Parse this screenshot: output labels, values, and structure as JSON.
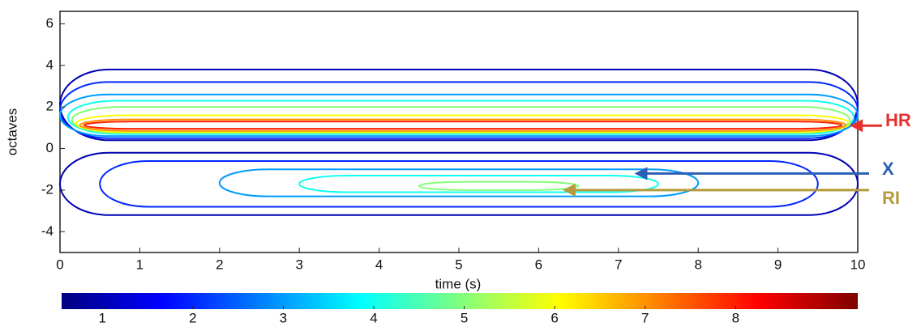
{
  "chart_data": {
    "type": "contour",
    "xlabel": "time (s)",
    "ylabel": "octaves",
    "xlim": [
      0,
      10
    ],
    "ylim": [
      -5,
      6.6
    ],
    "xticks": [
      0,
      1,
      2,
      3,
      4,
      5,
      6,
      7,
      8,
      9,
      10
    ],
    "yticks": [
      -4,
      -2,
      0,
      2,
      4,
      6
    ],
    "colormap": [
      "#00007f",
      "#0000ff",
      "#007fff",
      "#00ffff",
      "#7fff7f",
      "#ffff00",
      "#ff7f00",
      "#ff0000",
      "#7f0000"
    ],
    "colorbar": {
      "lim": [
        0.55,
        9.35
      ],
      "ticks": [
        1,
        2,
        3,
        4,
        5,
        6,
        7,
        8
      ]
    },
    "contours": [
      {
        "level": 1,
        "x": [
          0,
          10
        ],
        "y": [
          0.4,
          3.8
        ]
      },
      {
        "level": 2,
        "x": [
          0,
          10
        ],
        "y": [
          0.5,
          3.2
        ]
      },
      {
        "level": 3,
        "x": [
          0,
          10
        ],
        "y": [
          0.6,
          2.6
        ]
      },
      {
        "level": 4,
        "x": [
          0.1,
          9.95
        ],
        "y": [
          0.7,
          2.3
        ]
      },
      {
        "level": 5,
        "x": [
          0.15,
          9.9
        ],
        "y": [
          0.75,
          2.0
        ]
      },
      {
        "level": 6,
        "x": [
          0.2,
          9.9
        ],
        "y": [
          0.8,
          1.6
        ]
      },
      {
        "level": 7,
        "x": [
          0.25,
          9.85
        ],
        "y": [
          0.85,
          1.4
        ]
      },
      {
        "level": 8,
        "x": [
          0.3,
          9.8
        ],
        "y": [
          0.95,
          1.3
        ]
      },
      {
        "level": 1,
        "x": [
          0,
          10
        ],
        "y": [
          -3.2,
          -0.2
        ]
      },
      {
        "level": 2,
        "x": [
          0.5,
          9.5
        ],
        "y": [
          -2.8,
          -0.6
        ]
      },
      {
        "level": 3,
        "x": [
          2,
          8
        ],
        "y": [
          -2.3,
          -1.0
        ]
      },
      {
        "level": 4,
        "x": [
          3,
          7.5
        ],
        "y": [
          -2.1,
          -1.3
        ]
      },
      {
        "level": 5,
        "x": [
          4.5,
          6.5
        ],
        "y": [
          -2.0,
          -1.6
        ]
      }
    ],
    "annotations": [
      {
        "text": "HR",
        "color": "#e8312f",
        "x": 9.9,
        "y": 1.1
      },
      {
        "text": "X",
        "color": "#2b5fb4",
        "x": 7.2,
        "y": -1.2
      },
      {
        "text": "RI",
        "color": "#b59a3c",
        "x": 6.3,
        "y": -2.0
      }
    ]
  }
}
